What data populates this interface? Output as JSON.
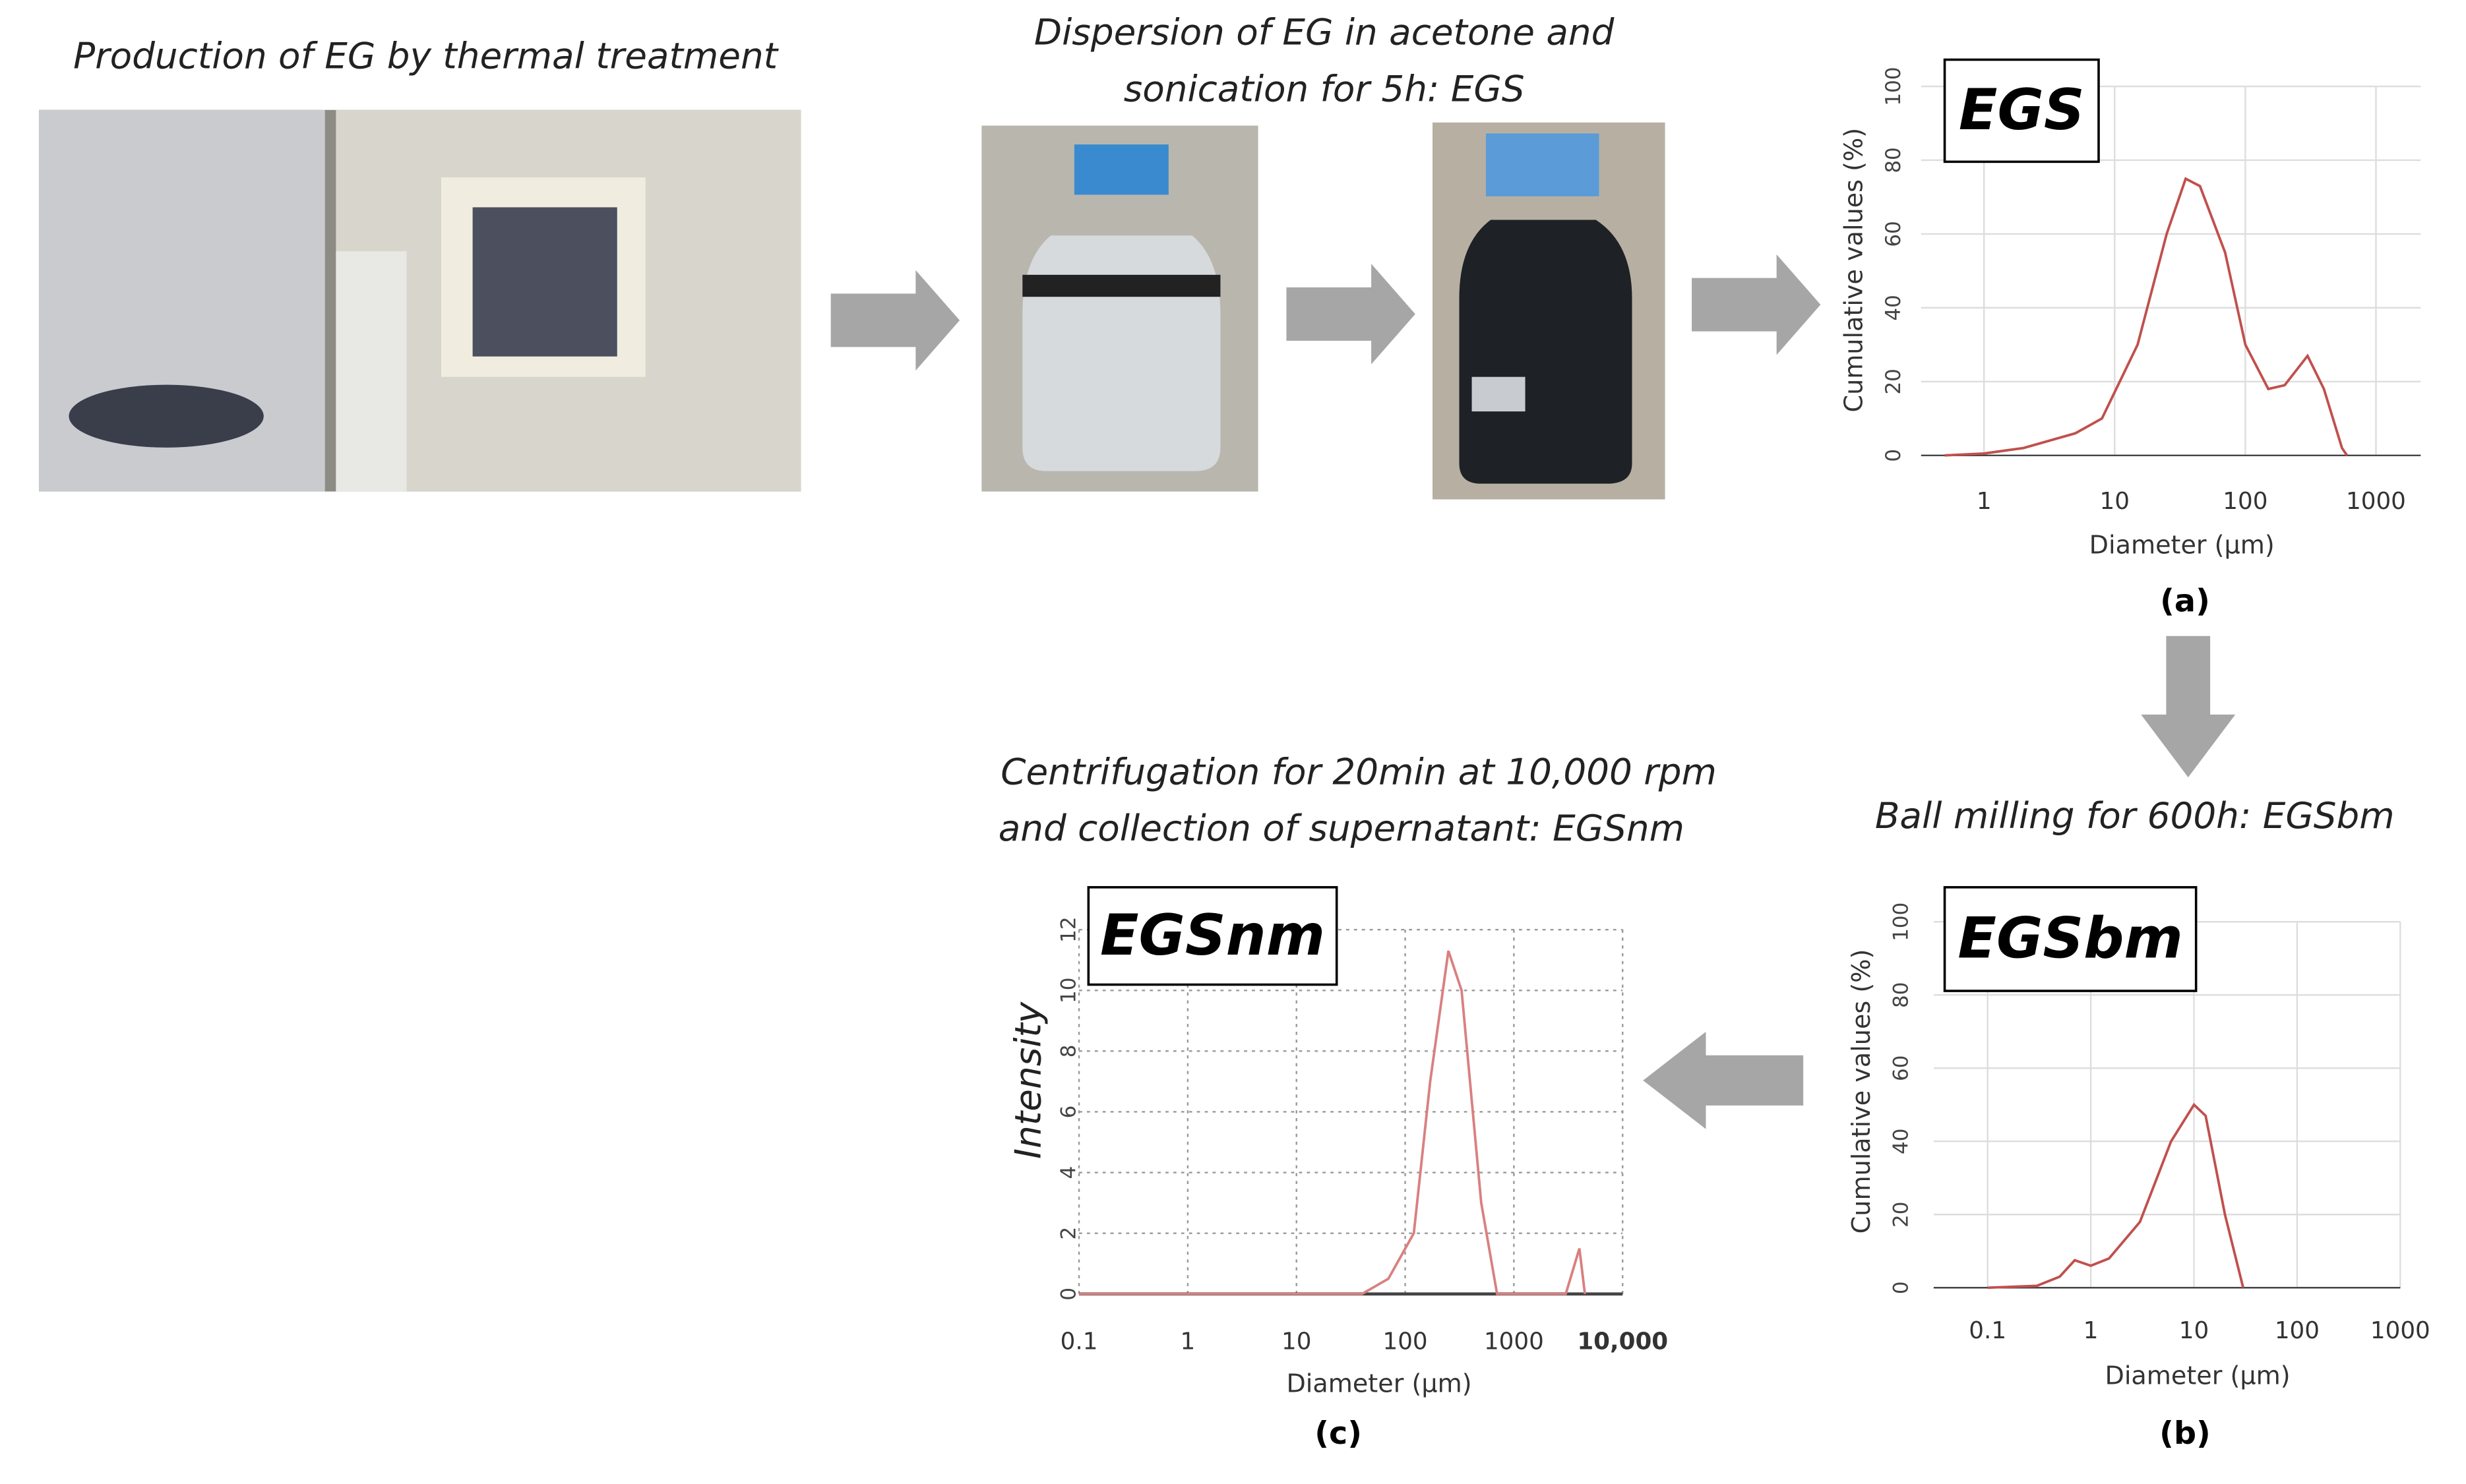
{
  "steps": [
    [
      "Production of EG by thermal treatment"
    ],
    [
      "Dispersion of EG in acetone and",
      "sonication for 5h: EGS"
    ],
    [
      "Ball milling for 600h: EGSbm"
    ],
    [
      "Centrifugation for 20min at 10,000 rpm",
      "and collection of supernatant: EGSnm"
    ]
  ],
  "chart_data": [
    {
      "type": "line",
      "title": "EGS",
      "panel_label": "(a)",
      "x_label": "Diameter (μm)",
      "y_label": "Cumulative values (%)",
      "x_scale": "log",
      "x": [
        0.5,
        1,
        2,
        5,
        8,
        15,
        25,
        35,
        45,
        70,
        100,
        150,
        200,
        300,
        400,
        550,
        600
      ],
      "values": [
        0,
        0.5,
        2,
        6,
        10,
        30,
        60,
        75,
        73,
        55,
        30,
        18,
        19,
        27,
        18,
        2,
        0
      ],
      "color": "#c0504d",
      "xlim": [
        0.33,
        2200
      ],
      "ylim": [
        0,
        100
      ],
      "xticks": [
        1,
        10,
        100,
        1000
      ],
      "yticks": [
        0,
        20,
        40,
        60,
        80,
        100
      ],
      "grid": true,
      "grid_style": "solid"
    },
    {
      "type": "line",
      "title": "EGSbm",
      "panel_label": "(b)",
      "x_label": "Diameter (μm)",
      "y_label": "Cumulative values (%)",
      "x_scale": "log",
      "x": [
        0.1,
        0.3,
        0.5,
        0.7,
        1,
        1.5,
        3,
        6,
        10,
        13,
        20,
        30
      ],
      "values": [
        0,
        0.5,
        3,
        7.5,
        6,
        8,
        18,
        40,
        50,
        47,
        20,
        0
      ],
      "color": "#c0504d",
      "xlim": [
        0.03,
        1000
      ],
      "ylim": [
        0,
        100
      ],
      "xticks": [
        0.1,
        1,
        10,
        100,
        1000
      ],
      "yticks": [
        0,
        20,
        40,
        60,
        80,
        100
      ],
      "grid": true,
      "grid_style": "solid"
    },
    {
      "type": "line",
      "title": "EGSnm",
      "panel_label": "(c)",
      "x_label": "Diameter (μm)",
      "y_label": "Intensity",
      "x_scale": "log",
      "x": [
        0.1,
        40,
        70,
        120,
        170,
        250,
        330,
        500,
        700,
        3000,
        4000,
        4500
      ],
      "values": [
        0,
        0,
        0.5,
        2,
        7,
        11.3,
        10,
        3,
        0,
        0,
        1.5,
        0
      ],
      "color": "#d98080",
      "xlim": [
        0.1,
        10000
      ],
      "ylim": [
        0,
        12
      ],
      "xticks": [
        0.1,
        1,
        10,
        100,
        1000,
        {
          "value": 10000,
          "label": "10,000"
        }
      ],
      "yticks": [
        0,
        2,
        4,
        6,
        8,
        10,
        12
      ],
      "grid": true,
      "grid_style": "dotted"
    }
  ]
}
